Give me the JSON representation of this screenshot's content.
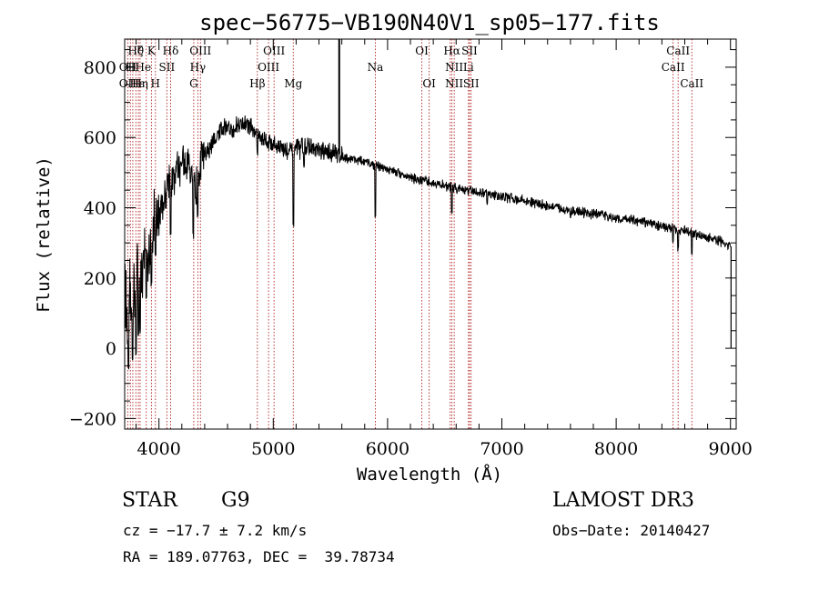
{
  "chart_data": {
    "type": "line",
    "title": "spec−56775−VB190N40V1_sp05−177.fits",
    "xlabel": "Wavelength (Å)",
    "ylabel": "Flux (relative)",
    "xlim": [
      3700,
      9050
    ],
    "ylim": [
      -230,
      880
    ],
    "xticks": [
      4000,
      5000,
      6000,
      7000,
      8000,
      9000
    ],
    "xtick_labels": [
      "4000",
      "5000",
      "6000",
      "7000",
      "8000",
      "9000"
    ],
    "yticks": [
      -200,
      0,
      200,
      400,
      600,
      800
    ],
    "ytick_labels": [
      "−200",
      "0",
      "200",
      "400",
      "600",
      "800"
    ],
    "series": [
      {
        "name": "spectrum",
        "color": "#000000",
        "anchors": [
          [
            3700,
            230
          ],
          [
            3720,
            60
          ],
          [
            3740,
            150
          ],
          [
            3760,
            120
          ],
          [
            3780,
            180
          ],
          [
            3800,
            200
          ],
          [
            3820,
            230
          ],
          [
            3840,
            170
          ],
          [
            3860,
            240
          ],
          [
            3880,
            300
          ],
          [
            3900,
            250
          ],
          [
            3920,
            330
          ],
          [
            3940,
            280
          ],
          [
            3960,
            380
          ],
          [
            3980,
            390
          ],
          [
            4000,
            370
          ],
          [
            4020,
            420
          ],
          [
            4040,
            410
          ],
          [
            4060,
            450
          ],
          [
            4080,
            480
          ],
          [
            4100,
            500
          ],
          [
            4120,
            470
          ],
          [
            4140,
            490
          ],
          [
            4160,
            520
          ],
          [
            4180,
            510
          ],
          [
            4200,
            540
          ],
          [
            4220,
            530
          ],
          [
            4240,
            520
          ],
          [
            4260,
            545
          ],
          [
            4280,
            500
          ],
          [
            4300,
            470
          ],
          [
            4320,
            450
          ],
          [
            4340,
            490
          ],
          [
            4360,
            520
          ],
          [
            4380,
            540
          ],
          [
            4400,
            555
          ],
          [
            4430,
            560
          ],
          [
            4460,
            575
          ],
          [
            4500,
            595
          ],
          [
            4550,
            620
          ],
          [
            4600,
            630
          ],
          [
            4650,
            625
          ],
          [
            4700,
            640
          ],
          [
            4750,
            640
          ],
          [
            4800,
            630
          ],
          [
            4850,
            610
          ],
          [
            4900,
            600
          ],
          [
            4950,
            590
          ],
          [
            5000,
            580
          ],
          [
            5050,
            575
          ],
          [
            5100,
            565
          ],
          [
            5150,
            560
          ],
          [
            5200,
            565
          ],
          [
            5250,
            570
          ],
          [
            5300,
            575
          ],
          [
            5350,
            565
          ],
          [
            5400,
            560
          ],
          [
            5450,
            555
          ],
          [
            5500,
            560
          ],
          [
            5550,
            555
          ],
          [
            5600,
            550
          ],
          [
            5650,
            540
          ],
          [
            5700,
            540
          ],
          [
            5800,
            530
          ],
          [
            5900,
            520
          ],
          [
            6000,
            510
          ],
          [
            6100,
            500
          ],
          [
            6200,
            485
          ],
          [
            6300,
            478
          ],
          [
            6400,
            470
          ],
          [
            6500,
            463
          ],
          [
            6600,
            456
          ],
          [
            6700,
            450
          ],
          [
            6800,
            444
          ],
          [
            6900,
            438
          ],
          [
            7000,
            432
          ],
          [
            7200,
            420
          ],
          [
            7400,
            405
          ],
          [
            7600,
            392
          ],
          [
            7800,
            382
          ],
          [
            8000,
            372
          ],
          [
            8200,
            360
          ],
          [
            8400,
            348
          ],
          [
            8600,
            332
          ],
          [
            8800,
            315
          ],
          [
            8900,
            305
          ],
          [
            9000,
            290
          ]
        ],
        "features": [
          [
            3733,
            -60
          ],
          [
            3770,
            -30
          ],
          [
            3798,
            -20
          ],
          [
            3820,
            40
          ],
          [
            3835,
            50
          ],
          [
            3889,
            140
          ],
          [
            3934,
            180
          ],
          [
            3969,
            260
          ],
          [
            4102,
            330
          ],
          [
            4300,
            320
          ],
          [
            4340,
            380
          ],
          [
            4861,
            555
          ],
          [
            5175,
            355
          ],
          [
            5270,
            520
          ],
          [
            5893,
            370
          ],
          [
            6280,
            470
          ],
          [
            6563,
            390
          ],
          [
            6870,
            410
          ],
          [
            7600,
            375
          ],
          [
            8498,
            300
          ],
          [
            8542,
            285
          ],
          [
            8662,
            275
          ],
          [
            9005,
            0
          ]
        ],
        "spike": {
          "x": 5577,
          "y": 880
        }
      }
    ],
    "line_labels": [
      {
        "label": "Hθ",
        "x": 3798,
        "row": 0
      },
      {
        "label": "ζ",
        "x": 3835,
        "row": 0
      },
      {
        "label": "K",
        "x": 3934,
        "row": 0
      },
      {
        "label": "Hδ",
        "x": 4102,
        "row": 0
      },
      {
        "label": "OIII",
        "x": 4363,
        "row": 0
      },
      {
        "label": "OIII",
        "x": 5007,
        "row": 0
      },
      {
        "label": "OI",
        "x": 6300,
        "row": 0
      },
      {
        "label": "Hα",
        "x": 6563,
        "row": 0
      },
      {
        "label": "SII",
        "x": 6717,
        "row": 0
      },
      {
        "label": "CaII",
        "x": 8542,
        "row": 0
      },
      {
        "label": "OII",
        "x": 3727,
        "row": 1
      },
      {
        "label": "HHe",
        "x": 3820,
        "row": 1
      },
      {
        "label": "SII",
        "x": 4069,
        "row": 1
      },
      {
        "label": "Hγ",
        "x": 4340,
        "row": 1
      },
      {
        "label": "OIII",
        "x": 4959,
        "row": 1
      },
      {
        "label": "Na",
        "x": 5893,
        "row": 1
      },
      {
        "label": "NII",
        "x": 6583,
        "row": 1
      },
      {
        "label": "Li",
        "x": 6708,
        "row": 1
      },
      {
        "label": "CaII",
        "x": 8498,
        "row": 1
      },
      {
        "label": "OII",
        "x": 3727,
        "row": 2
      },
      {
        "label": "Hε",
        "x": 3810,
        "row": 2
      },
      {
        "label": "Hη",
        "x": 3835,
        "row": 2
      },
      {
        "label": "H",
        "x": 3969,
        "row": 2
      },
      {
        "label": "G",
        "x": 4304,
        "row": 2
      },
      {
        "label": "Hβ",
        "x": 4861,
        "row": 2
      },
      {
        "label": "Mg",
        "x": 5175,
        "row": 2
      },
      {
        "label": "OI",
        "x": 6364,
        "row": 2
      },
      {
        "label": "NII",
        "x": 6583,
        "row": 2
      },
      {
        "label": "SII",
        "x": 6731,
        "row": 2
      },
      {
        "label": "CaII",
        "x": 8662,
        "row": 2
      }
    ],
    "line_markers": [
      3727,
      3750,
      3771,
      3798,
      3820,
      3835,
      3889,
      3934,
      3969,
      4069,
      4102,
      4304,
      4340,
      4363,
      4861,
      4959,
      5007,
      5175,
      5893,
      6300,
      6364,
      6548,
      6563,
      6583,
      6708,
      6717,
      6731,
      8498,
      8542,
      8662
    ],
    "colors": {
      "line": "#000000",
      "marker": "#b22222",
      "axis": "#000000"
    }
  },
  "info": {
    "class": "STAR",
    "subclass": "G9",
    "survey": "LAMOST DR3",
    "cz": "cz = −17.7 ± 7.2 km/s",
    "obsdate": "Obs−Date: 20140427",
    "radec": "RA = 189.07763, DEC =  39.78734"
  }
}
